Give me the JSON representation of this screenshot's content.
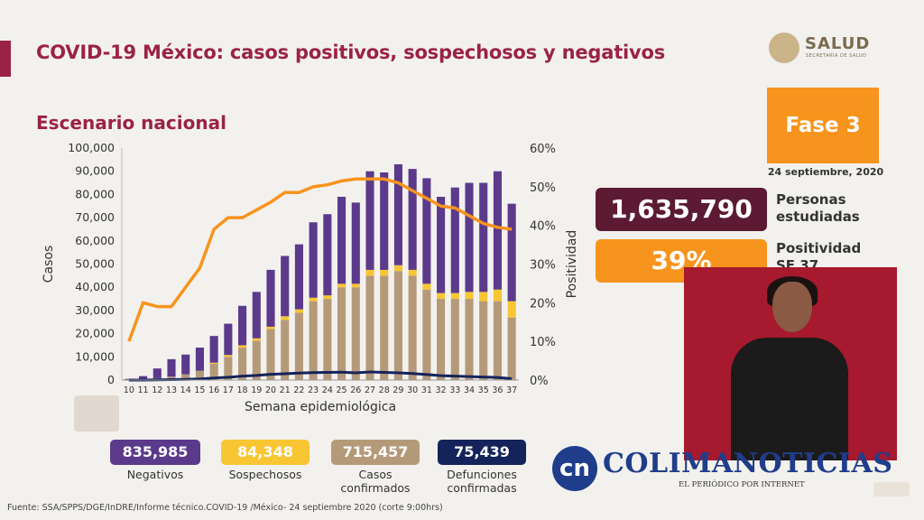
{
  "title": "COVID-19 México: casos positivos, sospechosos y negativos",
  "subtitle": "Escenario nacional",
  "logo": {
    "text": "SALUD",
    "sub": "SECRETARÍA DE SALUD"
  },
  "phase": "Fase 3",
  "date": "24 septiembre, 2020",
  "stats": {
    "personas_value": "1,635,790",
    "personas_label_1": "Personas",
    "personas_label_2": "estudiadas",
    "positividad_value": "39%",
    "positividad_label_1": "Positividad",
    "positividad_label_2": "SE 37"
  },
  "summary": [
    {
      "value": "835,985",
      "label": "Negativos",
      "color": "#5b3a8c"
    },
    {
      "value": "84,348",
      "label": "Sospechosos",
      "color": "#f9c633"
    },
    {
      "value": "715,457",
      "label": "Casos confirmados",
      "color": "#b59a7a"
    },
    {
      "value": "75,439",
      "label": "Defunciones confirmadas",
      "color": "#14235a"
    }
  ],
  "source": "Fuente: SSA/SPPS/DGE/InDRE/Informe técnico.COVID-19 /México- 24 septiembre 2020 (corte 9:00hrs)",
  "watermark": {
    "text": "COLIMANOTICIAS",
    "sub": "EL PERIÓDICO POR INTERNET"
  },
  "colors": {
    "brand": "#9b2247",
    "orange": "#f7941d",
    "negativos": "#5b3a8c",
    "sospechosos": "#f9c633",
    "confirmados": "#b59a7a",
    "defunciones": "#14235a"
  },
  "chart_data": {
    "type": "bar",
    "categories": [
      "10",
      "11",
      "12",
      "13",
      "14",
      "15",
      "16",
      "17",
      "18",
      "19",
      "20",
      "21",
      "22",
      "23",
      "24",
      "25",
      "26",
      "27",
      "28",
      "29",
      "30",
      "31",
      "32",
      "33",
      "34",
      "35",
      "36",
      "37"
    ],
    "series": [
      {
        "name": "Casos confirmados",
        "values": [
          200,
          400,
          800,
          1500,
          2500,
          4000,
          7000,
          10000,
          14000,
          17000,
          22000,
          26000,
          29000,
          34000,
          35000,
          40000,
          40000,
          45000,
          45000,
          47000,
          45000,
          39000,
          35000,
          35000,
          35000,
          34000,
          34000,
          27000
        ]
      },
      {
        "name": "Sospechosos",
        "values": [
          0,
          0,
          0,
          0,
          0,
          0,
          500,
          800,
          1000,
          1000,
          1000,
          1500,
          1500,
          1500,
          1500,
          1500,
          1500,
          2500,
          2500,
          2500,
          2500,
          2500,
          2500,
          2500,
          3000,
          4000,
          5000,
          7000
        ]
      },
      {
        "name": "Negativos",
        "values": [
          300,
          1300,
          4200,
          7500,
          8500,
          10000,
          11500,
          13500,
          17000,
          20000,
          24500,
          26000,
          28000,
          32500,
          35000,
          37500,
          35000,
          42500,
          42000,
          43500,
          43500,
          45500,
          41500,
          45500,
          47000,
          47000,
          51000,
          42000
        ]
      },
      {
        "name": "Defunciones confirmadas",
        "values": [
          0,
          0,
          100,
          200,
          300,
          500,
          900,
          1200,
          1700,
          2000,
          2500,
          2700,
          3000,
          3200,
          3300,
          3400,
          3100,
          3500,
          3300,
          3100,
          2800,
          2400,
          1900,
          1700,
          1500,
          1300,
          1100,
          600
        ]
      },
      {
        "name": "Positividad",
        "axis": "right",
        "values": [
          10,
          20,
          19,
          19,
          24,
          29,
          39,
          42,
          42,
          44,
          46,
          48.5,
          48.5,
          50,
          50.5,
          51.5,
          52,
          52,
          52,
          51,
          49,
          47,
          45,
          44.5,
          42.5,
          40.5,
          39.5,
          39
        ]
      }
    ],
    "xlabel": "Semana epidemiológica",
    "ylabel": "Casos",
    "y2label": "Positividad",
    "ylim": [
      0,
      100000
    ],
    "y2lim": [
      0,
      60
    ],
    "yticks": [
      "0",
      "10,000",
      "20,000",
      "30,000",
      "40,000",
      "50,000",
      "60,000",
      "70,000",
      "80,000",
      "90,000",
      "100,000"
    ],
    "y2ticks": [
      "0%",
      "10%",
      "20%",
      "30%",
      "40%",
      "50%",
      "60%"
    ],
    "grid": false,
    "legend": "none"
  }
}
